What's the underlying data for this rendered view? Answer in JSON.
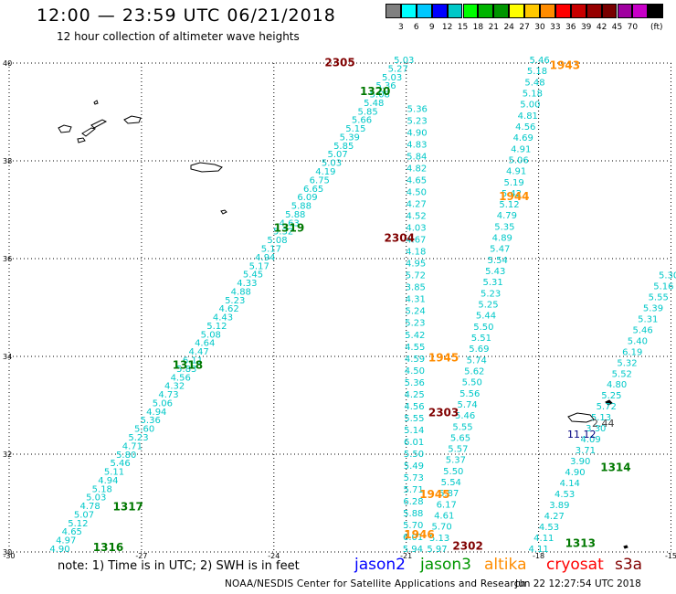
{
  "header": {
    "title": "12:00 — 23:59 UTC 06/21/2018",
    "subtitle": "12 hour collection of altimeter wave heights"
  },
  "colorbar": {
    "colors": [
      "#808080",
      "#00ffff",
      "#00c8ff",
      "#0000ff",
      "#00c8c8",
      "#00ff00",
      "#00b400",
      "#009600",
      "#ffff00",
      "#ffc800",
      "#ff8c00",
      "#ff0000",
      "#c80000",
      "#960000",
      "#780000",
      "#a000a0",
      "#c800c8",
      "#000000"
    ],
    "labels": [
      "3",
      "6",
      "9",
      "12",
      "15",
      "18",
      "21",
      "24",
      "27",
      "30",
      "33",
      "36",
      "39",
      "42",
      "45",
      "70"
    ],
    "unit": "(ft)"
  },
  "map": {
    "lat_labels": [
      "40",
      "38",
      "36",
      "34",
      "32",
      "30"
    ],
    "lon_labels": [
      "-30",
      "-27",
      "-24",
      "-21",
      "-18",
      "-15"
    ],
    "tracks": [
      {
        "id": "jason3-1316-1320",
        "color": "#00c8c8",
        "values": [
          "4.90",
          "4.97",
          "4.65",
          "5.12",
          "5.07",
          "4.78",
          "5.03",
          "5.18",
          "4.94",
          "5.11",
          "5.46",
          "5.80",
          "4.71",
          "5.23",
          "5.60",
          "5.36",
          "4.94",
          "5.06",
          "4.73",
          "4.32",
          "4.56",
          "5.83",
          "6.11",
          "4.47",
          "4.64",
          "5.08",
          "5.12",
          "4.43",
          "4.62",
          "5.23",
          "4.88",
          "4.33",
          "5.45",
          "5.17",
          "4.94",
          "5.17",
          "5.08",
          "5.32",
          "4.63",
          "5.88",
          "5.88",
          "6.09",
          "6.65",
          "6.75",
          "4.19",
          "5.03",
          "5.07",
          "5.85",
          "5.39",
          "5.15",
          "5.66",
          "5.85",
          "5.48",
          "5.08",
          "5.36",
          "5.03",
          "5.27",
          "5.03"
        ],
        "start": [
          -28.85,
          30.0
        ],
        "end": [
          -21.05,
          40.0
        ]
      },
      {
        "id": "cryosat-2302-2305",
        "color": "#00c8c8",
        "values": [
          "5.36",
          "5.23",
          "4.90",
          "4.83",
          "5.84",
          "4.82",
          "4.65",
          "4.50",
          "4.27",
          "4.52",
          "4.03",
          "4.67",
          "4.18",
          "4.95",
          "5.72",
          "3.85",
          "4.31",
          "5.24",
          "5.23",
          "5.42",
          "4.55",
          "4.59",
          "4.50",
          "5.36",
          "4.25",
          "4.56",
          "5.55",
          "5.14",
          "6.01",
          "5.50",
          "5.49",
          "5.73",
          "5.71",
          "6.28",
          "5.88",
          "5.70",
          "6.01",
          "5.94"
        ],
        "start": [
          -20.75,
          39.0
        ],
        "end": [
          -20.85,
          30.0
        ]
      },
      {
        "id": "altika-1943-1946",
        "color": "#00c8c8",
        "values": [
          "5.46",
          "5.18",
          "5.48",
          "5.18",
          "5.00",
          "4.81",
          "4.56",
          "4.69",
          "4.91",
          "5.06",
          "4.91",
          "5.19",
          "5.42",
          "5.12",
          "4.79",
          "5.35",
          "4.89",
          "5.47",
          "5.54",
          "5.43",
          "5.31",
          "5.23",
          "5.25",
          "5.44",
          "5.50",
          "5.51",
          "5.69",
          "5.74",
          "5.62",
          "5.50",
          "5.56",
          "5.74",
          "5.46",
          "5.55",
          "5.65",
          "5.57",
          "5.37",
          "5.50",
          "5.54",
          "5.87",
          "6.17",
          "4.61",
          "5.70",
          "5.13",
          "5.97"
        ],
        "start": [
          -17.98,
          40.0
        ],
        "end": [
          -20.3,
          30.0
        ]
      },
      {
        "id": "jason3-1313-1314",
        "color": "#00c8c8",
        "values": [
          "4.11",
          "4.11",
          "4.53",
          "4.27",
          "3.89",
          "4.53",
          "4.14",
          "4.90",
          "3.90",
          "3.71",
          "4.09",
          "3.30",
          "5.13",
          "5.72",
          "5.25",
          "4.80",
          "5.52",
          "5.32",
          "6.19",
          "5.40",
          "5.46",
          "5.31",
          "5.39",
          "5.55",
          "5.16",
          "5.30"
        ],
        "start": [
          -18.0,
          30.0
        ],
        "end": [
          -15.05,
          35.6
        ]
      }
    ],
    "island_values": [
      "2.44",
      "11.12"
    ],
    "time_labels": [
      {
        "text": "2305",
        "color": "#800000",
        "lon": -22.85,
        "lat": 39.93
      },
      {
        "text": "1320",
        "color": "#007800",
        "lon": -22.05,
        "lat": 39.35
      },
      {
        "text": "1943",
        "color": "#ff8c00",
        "lon": -17.75,
        "lat": 39.88
      },
      {
        "text": "1944",
        "color": "#ff8c00",
        "lon": -18.9,
        "lat": 37.2
      },
      {
        "text": "1319",
        "color": "#007800",
        "lon": -24.0,
        "lat": 36.55
      },
      {
        "text": "2304",
        "color": "#800000",
        "lon": -21.5,
        "lat": 36.35
      },
      {
        "text": "1945",
        "color": "#ff8c00",
        "lon": -20.5,
        "lat": 33.9
      },
      {
        "text": "1318",
        "color": "#007800",
        "lon": -26.3,
        "lat": 33.75
      },
      {
        "text": "2303",
        "color": "#800000",
        "lon": -20.5,
        "lat": 32.78
      },
      {
        "text": "1314",
        "color": "#007800",
        "lon": -16.6,
        "lat": 31.65
      },
      {
        "text": "1945",
        "color": "#ff8c00",
        "lon": -20.7,
        "lat": 31.1
      },
      {
        "text": "1317",
        "color": "#007800",
        "lon": -27.65,
        "lat": 30.85
      },
      {
        "text": "1946",
        "color": "#ff8c00",
        "lon": -21.05,
        "lat": 30.28
      },
      {
        "text": "2302",
        "color": "#800000",
        "lon": -19.95,
        "lat": 30.05
      },
      {
        "text": "1313",
        "color": "#007800",
        "lon": -17.4,
        "lat": 30.1
      },
      {
        "text": "1316",
        "color": "#007800",
        "lon": -28.1,
        "lat": 30.02
      }
    ]
  },
  "legend": {
    "note": "note: 1) Time is in UTC; 2) SWH is in feet",
    "satellites": [
      {
        "name": "jason2",
        "color": "#0000ff"
      },
      {
        "name": "jason3",
        "color": "#009600"
      },
      {
        "name": "altika",
        "color": "#ff8c00"
      },
      {
        "name": "cryosat",
        "color": "#ff0000"
      },
      {
        "name": "s3a",
        "color": "#800000"
      }
    ]
  },
  "footer": {
    "credit": "NOAA/NESDIS Center for Satellite Applications and Research",
    "timestamp": "Jun 22 12:27:54 UTC 2018"
  }
}
